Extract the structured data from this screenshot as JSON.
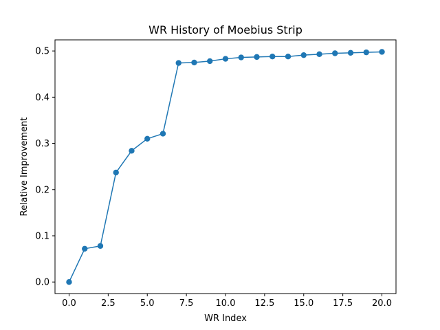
{
  "chart_data": {
    "type": "line",
    "title": "WR History of Moebius Strip",
    "xlabel": "WR Index",
    "ylabel": "Relative Improvement",
    "xlim": [
      -0.9,
      20.9
    ],
    "ylim": [
      -0.025,
      0.524
    ],
    "grid": false,
    "x_ticks": [
      0,
      2.5,
      5,
      7.5,
      10,
      12.5,
      15,
      17.5,
      20
    ],
    "x_tick_labels": [
      "0.0",
      "2.5",
      "5.0",
      "7.5",
      "10.0",
      "12.5",
      "15.0",
      "17.5",
      "20.0"
    ],
    "y_ticks": [
      0,
      0.1,
      0.2,
      0.3,
      0.4,
      0.5
    ],
    "y_tick_labels": [
      "0.0",
      "0.1",
      "0.2",
      "0.3",
      "0.4",
      "0.5"
    ],
    "series": [
      {
        "name": "Relative Improvement",
        "color": "#1f77b4",
        "x": [
          0,
          1,
          2,
          3,
          4,
          5,
          6,
          7,
          8,
          9,
          10,
          11,
          12,
          13,
          14,
          15,
          16,
          17,
          18,
          19,
          20
        ],
        "y": [
          0.0,
          0.072,
          0.078,
          0.237,
          0.284,
          0.31,
          0.321,
          0.474,
          0.475,
          0.478,
          0.483,
          0.486,
          0.487,
          0.488,
          0.488,
          0.491,
          0.493,
          0.495,
          0.496,
          0.497,
          0.498
        ]
      }
    ]
  }
}
